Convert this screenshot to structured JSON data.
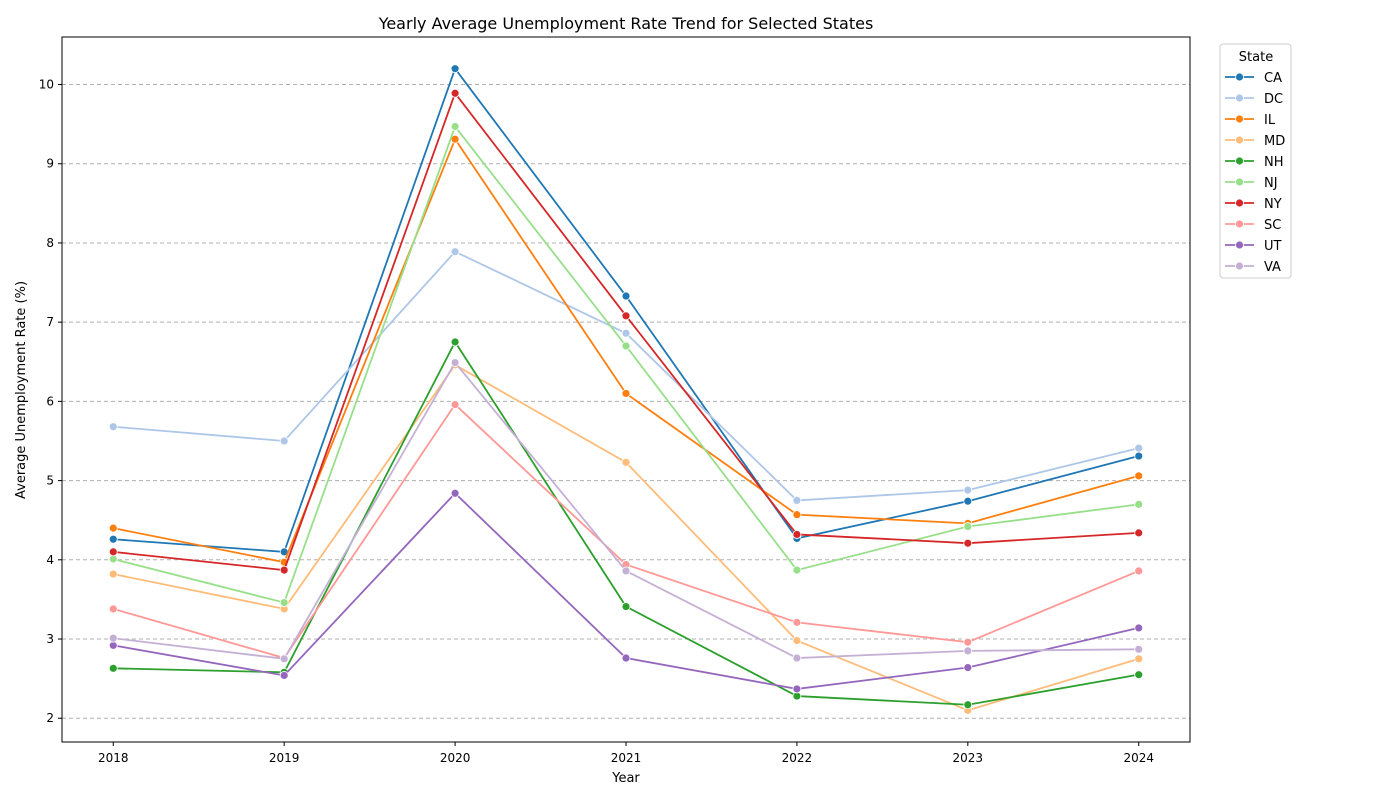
{
  "chart_data": {
    "type": "line",
    "title": "Yearly Average Unemployment Rate Trend for Selected States",
    "xlabel": "Year",
    "ylabel": "Average Unemployment Rate (%)",
    "x": [
      2018,
      2019,
      2020,
      2021,
      2022,
      2023,
      2024
    ],
    "xlim": [
      2017.7,
      2024.3
    ],
    "ylim": [
      1.7,
      10.6
    ],
    "yticks": [
      2,
      3,
      4,
      5,
      6,
      7,
      8,
      9,
      10
    ],
    "grid": "horizontal dashed",
    "legend": {
      "title": "State",
      "placement": "outside-top-right"
    },
    "series": [
      {
        "name": "CA",
        "color": "#1f77b4",
        "values": [
          4.26,
          4.1,
          10.2,
          7.33,
          4.27,
          4.74,
          5.31
        ]
      },
      {
        "name": "DC",
        "color": "#aec7e8",
        "values": [
          5.68,
          5.5,
          7.89,
          6.86,
          4.75,
          4.88,
          5.41
        ]
      },
      {
        "name": "IL",
        "color": "#ff7f0e",
        "values": [
          4.4,
          3.97,
          9.31,
          6.1,
          4.57,
          4.46,
          5.06
        ]
      },
      {
        "name": "MD",
        "color": "#ffbb78",
        "values": [
          3.82,
          3.38,
          6.46,
          5.23,
          2.98,
          2.1,
          2.75
        ]
      },
      {
        "name": "NH",
        "color": "#2ca02c",
        "values": [
          2.63,
          2.58,
          6.75,
          3.41,
          2.28,
          2.17,
          2.55
        ]
      },
      {
        "name": "NJ",
        "color": "#98df8a",
        "values": [
          4.01,
          3.46,
          9.47,
          6.7,
          3.87,
          4.42,
          4.7
        ]
      },
      {
        "name": "NY",
        "color": "#d62728",
        "values": [
          4.1,
          3.87,
          9.89,
          7.08,
          4.32,
          4.21,
          4.34
        ]
      },
      {
        "name": "SC",
        "color": "#ff9896",
        "values": [
          3.38,
          2.76,
          5.96,
          3.94,
          3.21,
          2.96,
          3.86
        ]
      },
      {
        "name": "UT",
        "color": "#9467bd",
        "values": [
          2.92,
          2.54,
          4.84,
          2.76,
          2.37,
          2.64,
          3.14
        ]
      },
      {
        "name": "VA",
        "color": "#c5b0d5",
        "values": [
          3.01,
          2.75,
          6.49,
          3.86,
          2.76,
          2.85,
          2.87
        ]
      }
    ]
  }
}
